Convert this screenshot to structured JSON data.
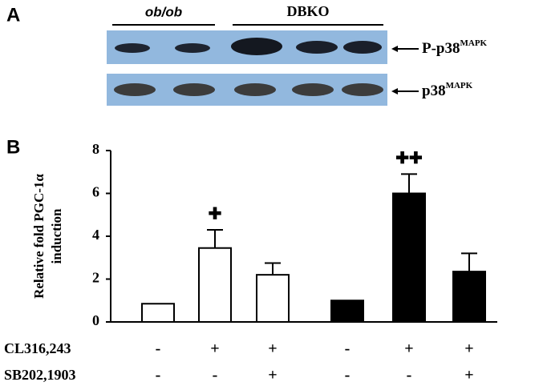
{
  "panel_a": {
    "label": "A",
    "groups": [
      "ob/ob",
      "DBKO"
    ],
    "bands": [
      {
        "name": "P-p38",
        "sup": "MAPK"
      },
      {
        "name": "p38",
        "sup": "MAPK"
      }
    ]
  },
  "chart_data": {
    "type": "bar",
    "label": "B",
    "y_label": [
      "Relative fold PGC-1α",
      "induction"
    ],
    "values": [
      0.85,
      3.45,
      2.2,
      1.0,
      6.0,
      2.35
    ],
    "errors": [
      null,
      0.85,
      0.55,
      null,
      0.9,
      0.85
    ],
    "colors": [
      "#ffffff",
      "#ffffff",
      "#ffffff",
      "#000000",
      "#000000",
      "#000000"
    ],
    "annotations": [
      null,
      "✚",
      null,
      null,
      "✚✚",
      null
    ],
    "treatments": [
      {
        "name": "CL316,243",
        "signs": [
          "-",
          "+",
          "+",
          "-",
          "+",
          "+"
        ]
      },
      {
        "name": "SB202,1903",
        "signs": [
          "-",
          "-",
          "+",
          "-",
          "-",
          "+"
        ]
      }
    ],
    "ylim": [
      0,
      8
    ],
    "yticks": [
      0,
      2,
      4,
      6,
      8
    ]
  }
}
